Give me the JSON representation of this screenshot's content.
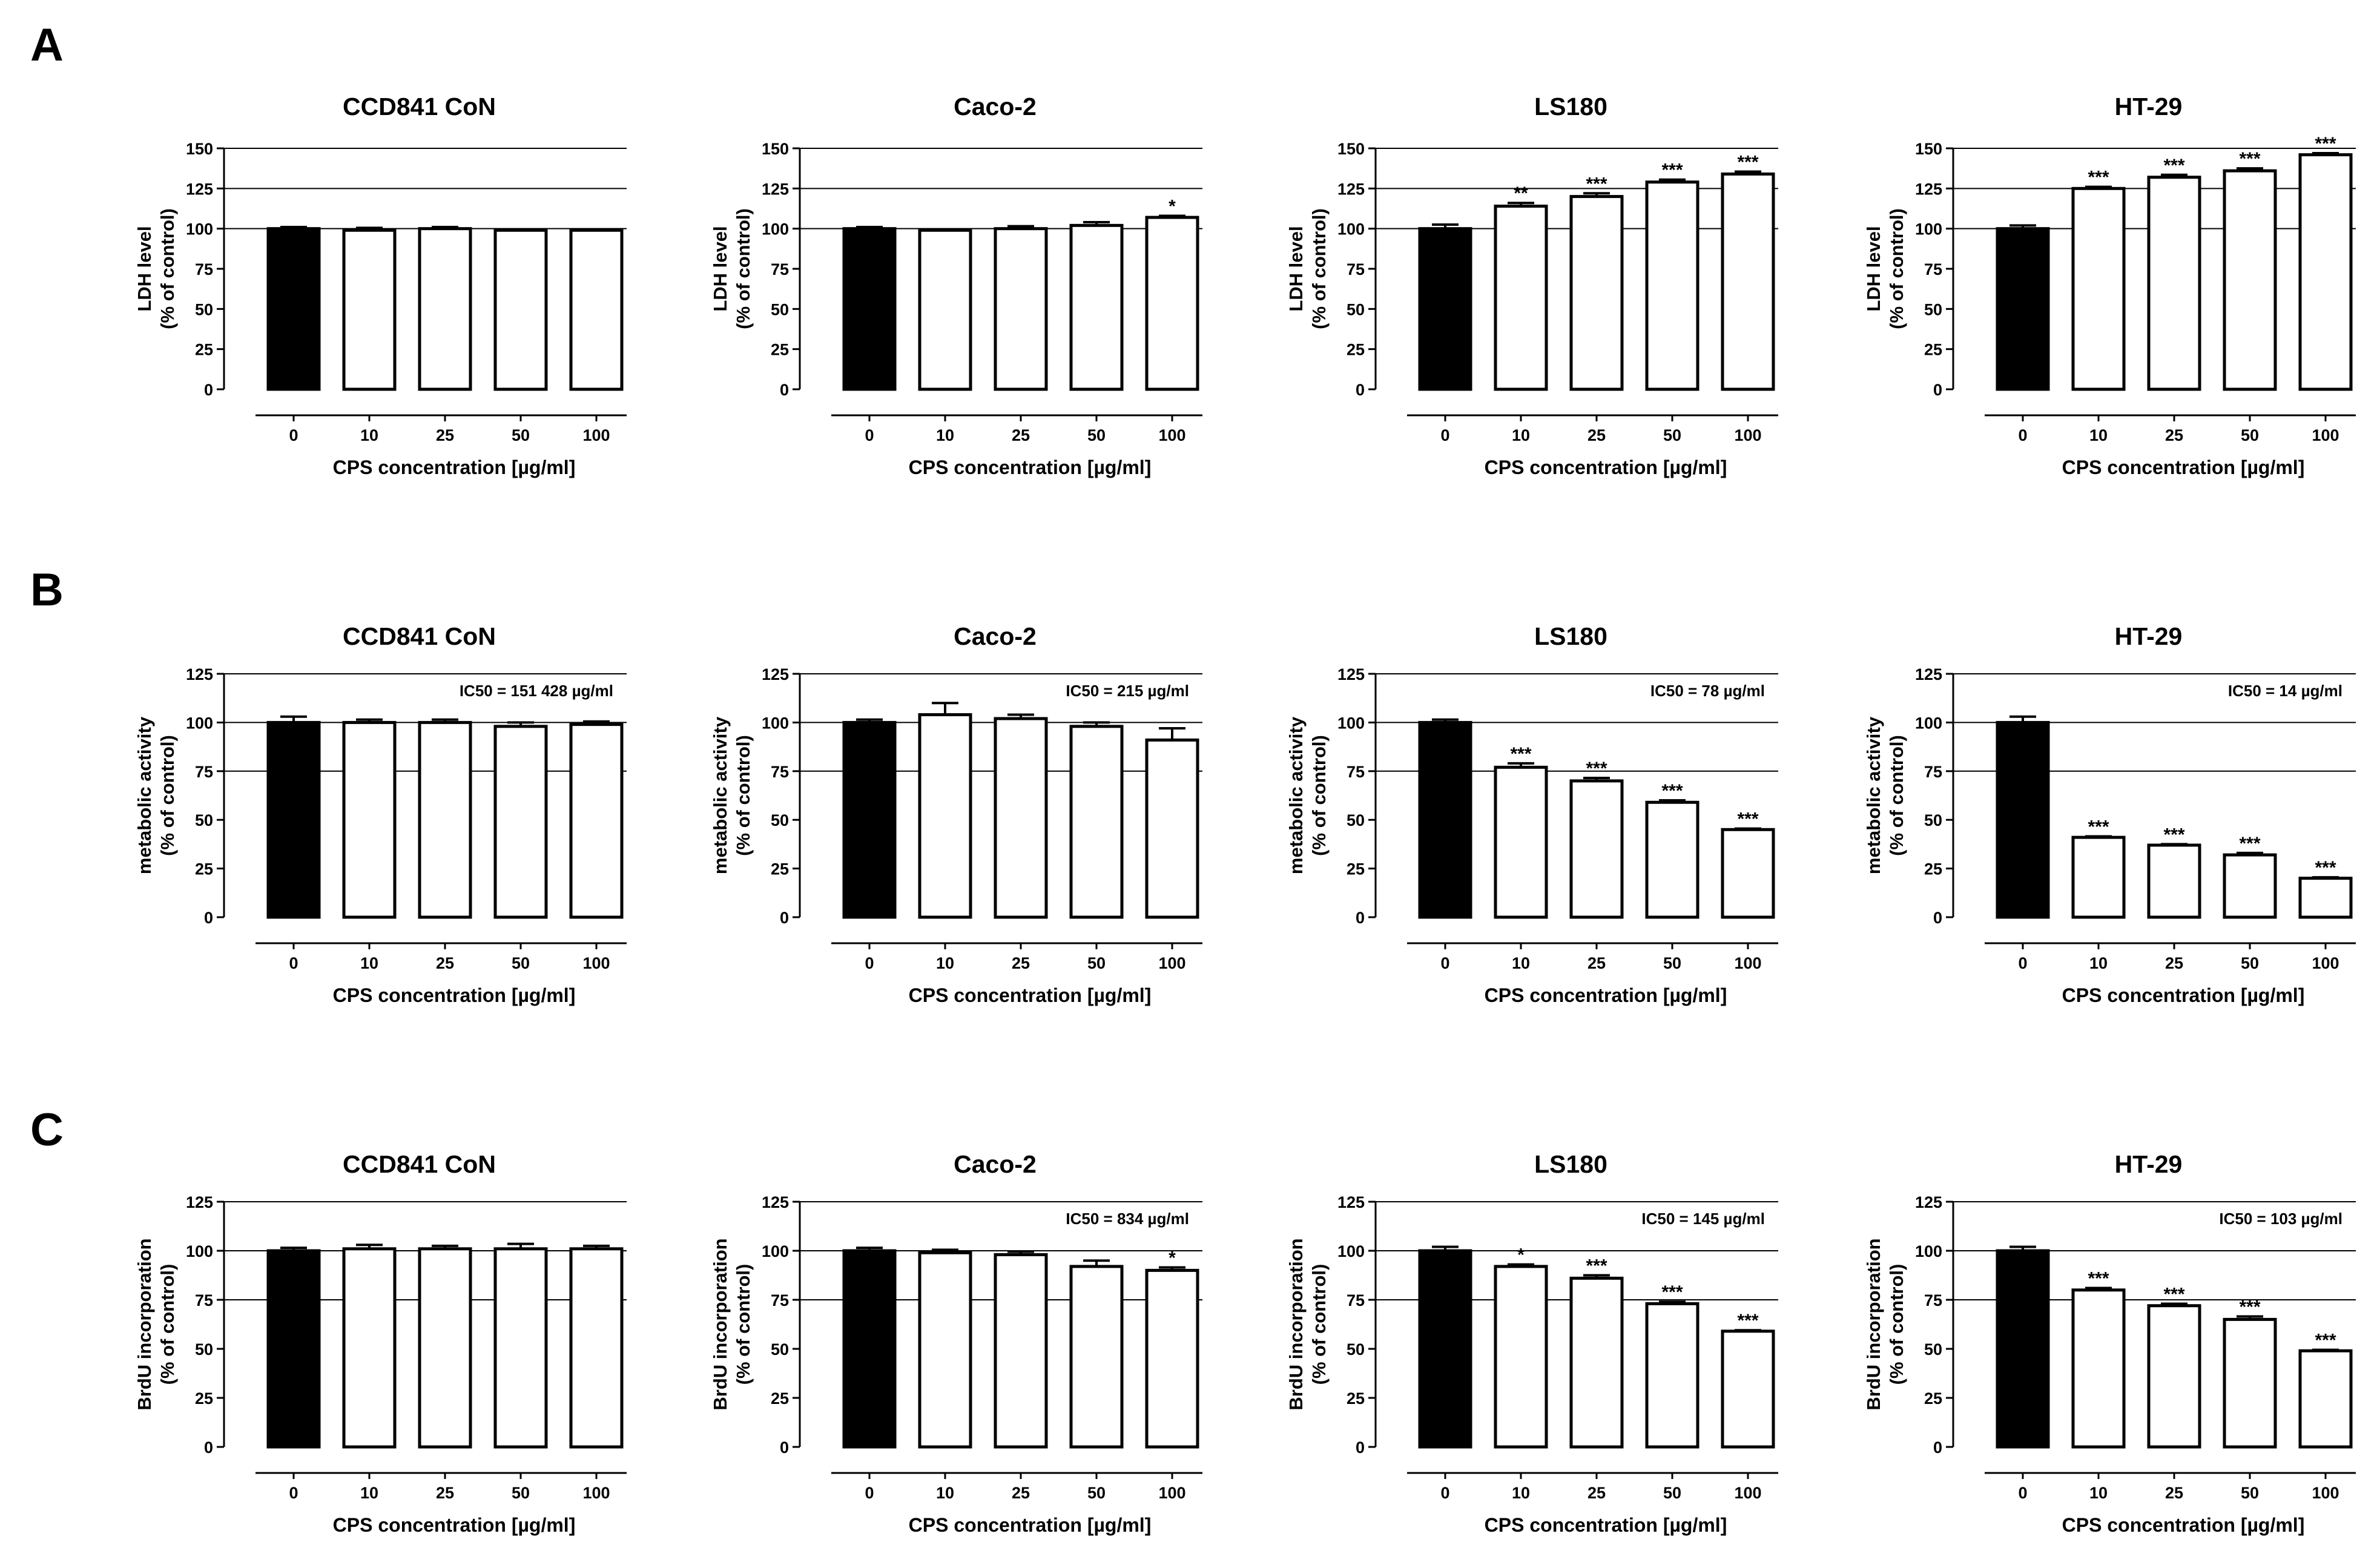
{
  "panel_letters": [
    "A",
    "B",
    "C"
  ],
  "colors": {
    "control_bar": "#000000",
    "treated_bar": "#ffffff",
    "stroke": "#000000"
  },
  "chart_data": [
    {
      "type": "bar",
      "panel": "A",
      "title": "CCD841 CoN",
      "categories": [
        "0",
        "10",
        "25",
        "50",
        "100"
      ],
      "values": [
        100,
        99,
        100,
        99,
        99
      ],
      "errors": [
        1,
        1.5,
        1,
        0.5,
        0.5
      ],
      "significance": [
        "",
        "",
        "",
        "",
        ""
      ],
      "ylim": [
        0,
        150
      ],
      "yticks": [
        0,
        25,
        50,
        75,
        100,
        125,
        150
      ],
      "gridlines": [
        100,
        125,
        150
      ],
      "ylabel": [
        "LDH level",
        "(% of control)"
      ],
      "xlabel": "CPS concentration [µg/ml]",
      "annotation": ""
    },
    {
      "type": "bar",
      "panel": "A",
      "title": "Caco-2",
      "categories": [
        "0",
        "10",
        "25",
        "50",
        "100"
      ],
      "values": [
        100,
        99,
        100,
        102,
        107
      ],
      "errors": [
        1,
        0.5,
        1.5,
        2,
        1
      ],
      "significance": [
        "",
        "",
        "",
        "",
        "*"
      ],
      "ylim": [
        0,
        150
      ],
      "yticks": [
        0,
        25,
        50,
        75,
        100,
        125,
        150
      ],
      "gridlines": [
        100,
        125,
        150
      ],
      "ylabel": [
        "LDH level",
        "(% of control)"
      ],
      "xlabel": "CPS concentration [µg/ml]",
      "annotation": ""
    },
    {
      "type": "bar",
      "panel": "A",
      "title": "LS180",
      "categories": [
        "0",
        "10",
        "25",
        "50",
        "100"
      ],
      "values": [
        100,
        114,
        120,
        129,
        134
      ],
      "errors": [
        2.5,
        2,
        2,
        1.5,
        1.5
      ],
      "significance": [
        "",
        "**",
        "***",
        "***",
        "***"
      ],
      "ylim": [
        0,
        150
      ],
      "yticks": [
        0,
        25,
        50,
        75,
        100,
        125,
        150
      ],
      "gridlines": [
        100,
        125,
        150
      ],
      "ylabel": [
        "LDH level",
        "(% of control)"
      ],
      "xlabel": "CPS concentration [µg/ml]",
      "annotation": ""
    },
    {
      "type": "bar",
      "panel": "A",
      "title": "HT-29",
      "categories": [
        "0",
        "10",
        "25",
        "50",
        "100"
      ],
      "values": [
        100,
        125,
        132,
        136,
        146
      ],
      "errors": [
        2,
        1,
        1.5,
        1.5,
        1
      ],
      "significance": [
        "",
        "***",
        "***",
        "***",
        "***"
      ],
      "ylim": [
        0,
        150
      ],
      "yticks": [
        0,
        25,
        50,
        75,
        100,
        125,
        150
      ],
      "gridlines": [
        100,
        125,
        150
      ],
      "ylabel": [
        "LDH level",
        "(% of control)"
      ],
      "xlabel": "CPS concentration [µg/ml]",
      "annotation": ""
    },
    {
      "type": "bar",
      "panel": "B",
      "title": "CCD841 CoN",
      "categories": [
        "0",
        "10",
        "25",
        "50",
        "100"
      ],
      "values": [
        100,
        100,
        100,
        98,
        99
      ],
      "errors": [
        3,
        1.5,
        1.5,
        2,
        1.5
      ],
      "significance": [
        "",
        "",
        "",
        "",
        ""
      ],
      "ylim": [
        0,
        125
      ],
      "yticks": [
        0,
        25,
        50,
        75,
        100,
        125
      ],
      "gridlines": [
        75,
        100,
        125
      ],
      "ylabel": [
        "metabolic activity",
        "(% of control)"
      ],
      "xlabel": "CPS concentration [µg/ml]",
      "annotation": "IC50 = 151 428 µg/ml"
    },
    {
      "type": "bar",
      "panel": "B",
      "title": "Caco-2",
      "categories": [
        "0",
        "10",
        "25",
        "50",
        "100"
      ],
      "values": [
        100,
        104,
        102,
        98,
        91
      ],
      "errors": [
        1.5,
        6,
        2,
        2,
        6
      ],
      "significance": [
        "",
        "",
        "",
        "",
        ""
      ],
      "ylim": [
        0,
        125
      ],
      "yticks": [
        0,
        25,
        50,
        75,
        100,
        125
      ],
      "gridlines": [
        75,
        100,
        125
      ],
      "ylabel": [
        "metabolic activity",
        "(% of control)"
      ],
      "xlabel": "CPS concentration [µg/ml]",
      "annotation": "IC50 = 215 µg/ml"
    },
    {
      "type": "bar",
      "panel": "B",
      "title": "LS180",
      "categories": [
        "0",
        "10",
        "25",
        "50",
        "100"
      ],
      "values": [
        100,
        77,
        70,
        59,
        45
      ],
      "errors": [
        1.5,
        2,
        1.5,
        1,
        0.5
      ],
      "significance": [
        "",
        "***",
        "***",
        "***",
        "***"
      ],
      "ylim": [
        0,
        125
      ],
      "yticks": [
        0,
        25,
        50,
        75,
        100,
        125
      ],
      "gridlines": [
        75,
        100,
        125
      ],
      "ylabel": [
        "metabolic activity",
        "(% of control)"
      ],
      "xlabel": "CPS concentration [µg/ml]",
      "annotation": "IC50 = 78 µg/ml"
    },
    {
      "type": "bar",
      "panel": "B",
      "title": "HT-29",
      "categories": [
        "0",
        "10",
        "25",
        "50",
        "100"
      ],
      "values": [
        100,
        41,
        37,
        32,
        20
      ],
      "errors": [
        3,
        0.5,
        0.5,
        1,
        0.5
      ],
      "significance": [
        "",
        "***",
        "***",
        "***",
        "***"
      ],
      "ylim": [
        0,
        125
      ],
      "yticks": [
        0,
        25,
        50,
        75,
        100,
        125
      ],
      "gridlines": [
        75,
        100,
        125
      ],
      "ylabel": [
        "metabolic activity",
        "(% of control)"
      ],
      "xlabel": "CPS concentration [µg/ml]",
      "annotation": "IC50 = 14 µg/ml"
    },
    {
      "type": "bar",
      "panel": "C",
      "title": "CCD841 CoN",
      "categories": [
        "0",
        "10",
        "25",
        "50",
        "100"
      ],
      "values": [
        100,
        101,
        101,
        101,
        101
      ],
      "errors": [
        1.5,
        2,
        1.5,
        2.5,
        1.5
      ],
      "significance": [
        "",
        "",
        "",
        "",
        ""
      ],
      "ylim": [
        0,
        125
      ],
      "yticks": [
        0,
        25,
        50,
        75,
        100,
        125
      ],
      "gridlines": [
        75,
        100,
        125
      ],
      "ylabel": [
        "BrdU incorporation",
        "(% of control)"
      ],
      "xlabel": "CPS concentration [µg/ml]",
      "annotation": ""
    },
    {
      "type": "bar",
      "panel": "C",
      "title": "Caco-2",
      "categories": [
        "0",
        "10",
        "25",
        "50",
        "100"
      ],
      "values": [
        100,
        99,
        98,
        92,
        90
      ],
      "errors": [
        1.5,
        1.5,
        1.5,
        3,
        1.5
      ],
      "significance": [
        "",
        "",
        "",
        "",
        "*"
      ],
      "ylim": [
        0,
        125
      ],
      "yticks": [
        0,
        25,
        50,
        75,
        100,
        125
      ],
      "gridlines": [
        75,
        100,
        125
      ],
      "ylabel": [
        "BrdU incorporation",
        "(% of control)"
      ],
      "xlabel": "CPS concentration [µg/ml]",
      "annotation": "IC50 = 834 µg/ml"
    },
    {
      "type": "bar",
      "panel": "C",
      "title": "LS180",
      "categories": [
        "0",
        "10",
        "25",
        "50",
        "100"
      ],
      "values": [
        100,
        92,
        86,
        73,
        59
      ],
      "errors": [
        2,
        1,
        1.5,
        1,
        0.5
      ],
      "significance": [
        "",
        "*",
        "***",
        "***",
        "***"
      ],
      "ylim": [
        0,
        125
      ],
      "yticks": [
        0,
        25,
        50,
        75,
        100,
        125
      ],
      "gridlines": [
        75,
        100,
        125
      ],
      "ylabel": [
        "BrdU incorporation",
        "(% of control)"
      ],
      "xlabel": "CPS concentration [µg/ml]",
      "annotation": "IC50 = 145 µg/ml"
    },
    {
      "type": "bar",
      "panel": "C",
      "title": "HT-29",
      "categories": [
        "0",
        "10",
        "25",
        "50",
        "100"
      ],
      "values": [
        100,
        80,
        72,
        65,
        49
      ],
      "errors": [
        2,
        1,
        1,
        1.5,
        0.5
      ],
      "significance": [
        "",
        "***",
        "***",
        "***",
        "***"
      ],
      "ylim": [
        0,
        125
      ],
      "yticks": [
        0,
        25,
        50,
        75,
        100,
        125
      ],
      "gridlines": [
        75,
        100,
        125
      ],
      "ylabel": [
        "BrdU incorporation",
        "(% of control)"
      ],
      "xlabel": "CPS concentration [µg/ml]",
      "annotation": "IC50 = 103 µg/ml"
    }
  ]
}
